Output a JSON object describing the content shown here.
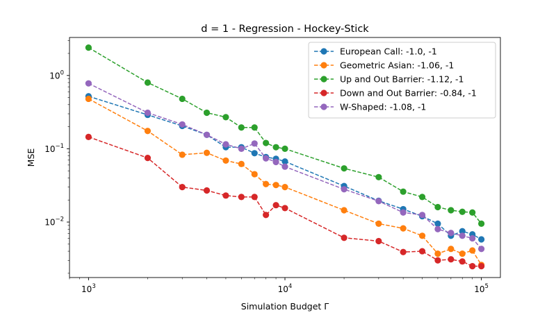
{
  "chart_data": {
    "type": "line",
    "title": "d = 1 - Regression - Hockey-Stick",
    "xlabel": "Simulation Budget Γ",
    "ylabel": "MSE",
    "xscale": "log",
    "yscale": "log",
    "xlim": [
      800,
      125000
    ],
    "ylim": [
      0.00175,
      3.3
    ],
    "legend_position": "top-right",
    "grid": false,
    "x_ticks": [
      {
        "value": 1000,
        "base": "10",
        "exp": "3"
      },
      {
        "value": 10000,
        "base": "10",
        "exp": "4"
      },
      {
        "value": 100000,
        "base": "10",
        "exp": "5"
      }
    ],
    "y_ticks": [
      {
        "value": 0.01,
        "base": "10",
        "exp": "−2"
      },
      {
        "value": 0.1,
        "base": "10",
        "exp": "−1"
      },
      {
        "value": 1,
        "base": "10",
        "exp": "0"
      }
    ],
    "x": [
      1000,
      2000,
      3000,
      4000,
      5000,
      6000,
      7000,
      8000,
      9000,
      10000,
      20000,
      30000,
      40000,
      50000,
      60000,
      70000,
      80000,
      90000,
      100000
    ],
    "series": [
      {
        "name": "European Call: -1.0, -1",
        "color": "#1f77b4",
        "values": [
          0.52,
          0.29,
          0.205,
          0.155,
          0.105,
          0.105,
          0.087,
          0.077,
          0.073,
          0.067,
          0.031,
          0.0195,
          0.015,
          0.012,
          0.0095,
          0.0065,
          0.0075,
          0.0068,
          0.0058
        ]
      },
      {
        "name": "Geometric Asian: -1.06, -1",
        "color": "#ff7f0e",
        "values": [
          0.48,
          0.175,
          0.083,
          0.088,
          0.069,
          0.062,
          0.045,
          0.033,
          0.032,
          0.03,
          0.0145,
          0.0095,
          0.0082,
          0.0065,
          0.0037,
          0.0043,
          0.0037,
          0.0041,
          0.0026
        ]
      },
      {
        "name": "Up and Out Barrier: -1.12, -1",
        "color": "#2ca02c",
        "values": [
          2.4,
          0.8,
          0.48,
          0.31,
          0.27,
          0.195,
          0.195,
          0.12,
          0.105,
          0.1,
          0.054,
          0.041,
          0.026,
          0.022,
          0.016,
          0.0145,
          0.0138,
          0.0135,
          0.0095
        ]
      },
      {
        "name": "Down and Out Barrier: -0.84, -1",
        "color": "#d62728",
        "values": [
          0.145,
          0.075,
          0.03,
          0.027,
          0.023,
          0.022,
          0.022,
          0.0125,
          0.017,
          0.0155,
          0.0061,
          0.0055,
          0.0039,
          0.004,
          0.003,
          0.0031,
          0.0029,
          0.0025,
          0.0025
        ]
      },
      {
        "name": "W-Shaped: -1.08, -1",
        "color": "#9467bd",
        "values": [
          0.78,
          0.31,
          0.215,
          0.155,
          0.115,
          0.1,
          0.118,
          0.074,
          0.066,
          0.057,
          0.028,
          0.0193,
          0.0135,
          0.0125,
          0.008,
          0.0071,
          0.0065,
          0.006,
          0.0043
        ]
      }
    ]
  }
}
